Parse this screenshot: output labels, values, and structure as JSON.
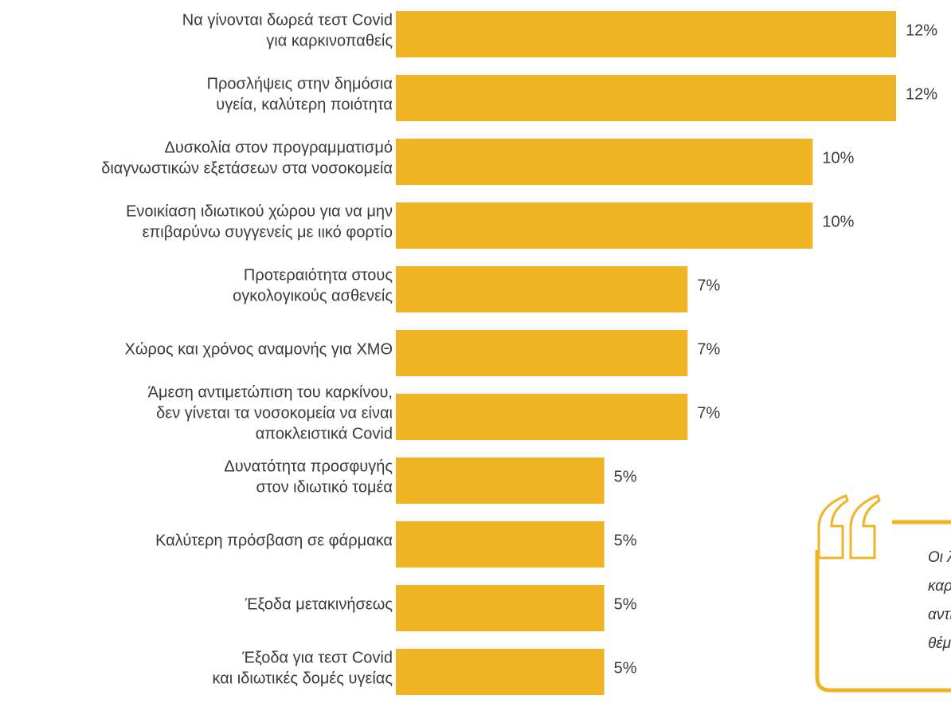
{
  "chart_data": {
    "type": "hbar",
    "categories": [
      [
        "Να γίνονται δωρεά τεστ Covid",
        "για καρκινοπαθείς"
      ],
      [
        "Προσλήψεις στην δημόσια",
        "υγεία,  καλύτερη ποιότητα"
      ],
      [
        "Δυσκολία στον προγραμματισμό",
        "διαγνωστικών εξετάσεων στα νοσοκομεία"
      ],
      [
        "Ενοικίαση ιδιωτικού χώρου για να μην",
        "επιβαρύνω συγγενείς με ιικό φορτίο"
      ],
      [
        "Προτεραιότητα στους",
        "ογκολογικούς ασθενείς"
      ],
      [
        "Χώρος και χρόνος αναμονής για ΧΜΘ"
      ],
      [
        "Άμεση αντιμετώπιση του καρκίνου,",
        "δεν γίνεται τα νοσοκομεία να είναι",
        "αποκλειστικά  Covid"
      ],
      [
        "Δυνατότητα προσφυγής",
        "στον ιδιωτικό τομέα"
      ],
      [
        "Καλύτερη πρόσβαση σε φάρμακα"
      ],
      [
        "Έξοδα μετακινήσεως"
      ],
      [
        "Έξοδα για τεστ Covid",
        "και ιδιωτικές δομές υγείας"
      ]
    ],
    "values": [
      12,
      12,
      10,
      10,
      7,
      7,
      7,
      5,
      5,
      5,
      5
    ],
    "value_labels": [
      "12%",
      "12%",
      "10%",
      "10%",
      "7%",
      "7%",
      "7%",
      "5%",
      "5%",
      "5%",
      "5%"
    ],
    "color": "#f0b323",
    "xlim": [
      0,
      12
    ],
    "annotation": [
      "Οι λ",
      "καρι",
      "αντιμ",
      "θέμα"
    ]
  }
}
